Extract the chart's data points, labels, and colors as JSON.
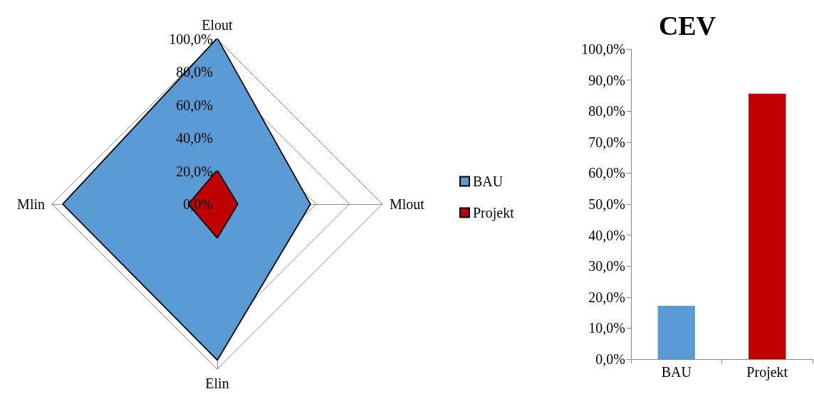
{
  "chart_data": [
    {
      "type": "radar",
      "categories": [
        "Elout",
        "Mlout",
        "Elin",
        "Mlin"
      ],
      "series": [
        {
          "name": "BAU",
          "color": "#5b9bd5",
          "values": [
            100,
            56,
            94,
            93
          ]
        },
        {
          "name": "Projekt",
          "color": "#c00000",
          "values": [
            20,
            12,
            20,
            17
          ]
        }
      ],
      "ylim": [
        0,
        100
      ],
      "yticks": [
        {
          "value": 0,
          "label": "0,0%"
        },
        {
          "value": 20,
          "label": "20,0%"
        },
        {
          "value": 40,
          "label": "40,0%"
        },
        {
          "value": 60,
          "label": "60,0%"
        },
        {
          "value": 80,
          "label": "80,0%"
        },
        {
          "value": 100,
          "label": "100,0%"
        }
      ],
      "legend": "right",
      "marker": "none"
    },
    {
      "type": "bar",
      "title": "CEV",
      "categories": [
        "BAU",
        "Projekt"
      ],
      "values": [
        17.2,
        85.6
      ],
      "colors": [
        "#5b9bd5",
        "#c00000"
      ],
      "ylim": [
        0,
        100
      ],
      "yticks": [
        {
          "value": 0,
          "label": "0,0%"
        },
        {
          "value": 10,
          "label": "10,0%"
        },
        {
          "value": 20,
          "label": "20,0%"
        },
        {
          "value": 30,
          "label": "30,0%"
        },
        {
          "value": 40,
          "label": "40,0%"
        },
        {
          "value": 50,
          "label": "50,0%"
        },
        {
          "value": 60,
          "label": "60,0%"
        },
        {
          "value": 70,
          "label": "70,0%"
        },
        {
          "value": 80,
          "label": "80,0%"
        },
        {
          "value": 90,
          "label": "90,0%"
        },
        {
          "value": 100,
          "label": "100,0%"
        }
      ]
    }
  ]
}
